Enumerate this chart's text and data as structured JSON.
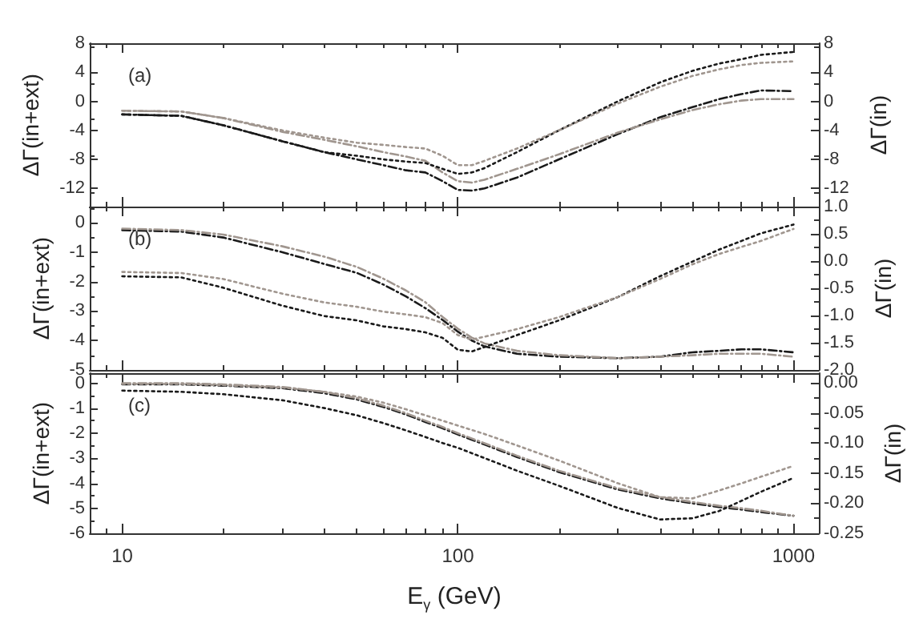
{
  "chart_data": [
    {
      "type": "line",
      "ylabel": "ΔΓ(in+ext)",
      "y2label": "ΔΓ(in)",
      "annotations": [
        "(a)"
      ],
      "log": "x",
      "xlim": [
        8,
        1190
      ],
      "xticks": [
        10,
        100,
        1000
      ],
      "tick_labels": "y",
      "ylim": [
        -14.5,
        8
      ],
      "yticks": [
        -12,
        -8,
        -4,
        0,
        4,
        8
      ],
      "y2lim": [
        -14.5,
        8
      ],
      "y2ticks": [
        -12,
        -8,
        -4,
        0,
        4,
        8
      ],
      "marker": "none",
      "x": [
        10,
        15,
        20,
        30,
        40,
        50,
        60,
        70,
        80,
        90,
        100,
        110,
        120,
        150,
        200,
        300,
        400,
        500,
        600,
        700,
        800,
        1000
      ],
      "series": [
        {
          "color": "#1a1a1a",
          "line_style": "dashed",
          "values": [
            -1.8,
            -2.0,
            -3.3,
            -5.5,
            -7,
            -8,
            -8.8,
            -9.5,
            -9.8,
            -11,
            -12.2,
            -12.3,
            -12,
            -10.5,
            -8,
            -4.5,
            -2.2,
            -0.8,
            0.3,
            1,
            1.5,
            1.4
          ]
        },
        {
          "color": "#a0968f",
          "line_style": "dashed",
          "values": [
            -1.3,
            -1.4,
            -2.3,
            -4.2,
            -5.3,
            -6.2,
            -7,
            -7.6,
            -8.2,
            -9.8,
            -11,
            -11.2,
            -10.8,
            -9.3,
            -7.3,
            -4.3,
            -2.5,
            -1.2,
            -0.4,
            0.1,
            0.3,
            0.3
          ]
        },
        {
          "color": "#1a1a1a",
          "line_style": "dotted",
          "axis": "y2",
          "values": [
            -1.8,
            -2.0,
            -3.3,
            -5.5,
            -7,
            -7.5,
            -8,
            -8.3,
            -8.5,
            -9.3,
            -10,
            -9.8,
            -9.2,
            -7,
            -4,
            0,
            2.6,
            4.2,
            5.2,
            5.8,
            6.4,
            6.8
          ]
        },
        {
          "color": "#a0968f",
          "line_style": "dotted",
          "axis": "y2",
          "values": [
            -1.3,
            -1.4,
            -2.3,
            -4,
            -5,
            -5.7,
            -6,
            -6.3,
            -6.5,
            -7.5,
            -8.8,
            -8.8,
            -8.2,
            -6.5,
            -4,
            -0.3,
            2,
            3.5,
            4.4,
            5,
            5.3,
            5.5
          ]
        }
      ]
    },
    {
      "type": "line",
      "ylabel": "ΔΓ(in+ext)",
      "y2label": "ΔΓ(in)",
      "annotations": [
        "(b)"
      ],
      "log": "x",
      "xlim": [
        8,
        1190
      ],
      "xticks": [
        10,
        100,
        1000
      ],
      "tick_labels": "y",
      "ylim": [
        -5,
        0.55
      ],
      "yticks": [
        -5,
        -4,
        -3,
        -2,
        -1,
        0
      ],
      "y2lim": [
        -2,
        1
      ],
      "y2ticks": [
        {
          "value": -2,
          "label": "-2.0"
        },
        {
          "value": -1.5,
          "label": "-1.5"
        },
        {
          "value": -1,
          "label": "-1.0"
        },
        {
          "value": -0.5,
          "label": "-0.5"
        },
        {
          "value": 0,
          "label": "0.0"
        },
        {
          "value": 0.5,
          "label": "0.5"
        },
        {
          "value": 1,
          "label": "1.0"
        }
      ],
      "marker": "none",
      "x": [
        10,
        15,
        20,
        30,
        40,
        50,
        60,
        70,
        80,
        90,
        100,
        110,
        120,
        150,
        200,
        300,
        400,
        500,
        600,
        700,
        800,
        1000
      ],
      "series": [
        {
          "color": "#1a1a1a",
          "line_style": "dashed",
          "values": [
            -0.25,
            -0.3,
            -0.5,
            -1.0,
            -1.4,
            -1.7,
            -2.1,
            -2.5,
            -2.9,
            -3.3,
            -3.7,
            -4.0,
            -4.2,
            -4.45,
            -4.55,
            -4.6,
            -4.55,
            -4.4,
            -4.35,
            -4.3,
            -4.3,
            -4.4
          ]
        },
        {
          "color": "#a0968f",
          "line_style": "dashed",
          "values": [
            -0.2,
            -0.25,
            -0.4,
            -0.8,
            -1.15,
            -1.5,
            -1.9,
            -2.3,
            -2.7,
            -3.2,
            -3.6,
            -3.9,
            -4.1,
            -4.35,
            -4.5,
            -4.6,
            -4.55,
            -4.5,
            -4.45,
            -4.45,
            -4.45,
            -4.55
          ]
        },
        {
          "color": "#1a1a1a",
          "line_style": "dotted",
          "axis": "y2",
          "values": [
            -0.28,
            -0.3,
            -0.49,
            -0.82,
            -1.01,
            -1.09,
            -1.2,
            -1.25,
            -1.31,
            -1.41,
            -1.63,
            -1.66,
            -1.58,
            -1.36,
            -1.09,
            -0.66,
            -0.28,
            -0.01,
            0.21,
            0.37,
            0.51,
            0.67
          ]
        },
        {
          "color": "#a0968f",
          "line_style": "dotted",
          "axis": "y2",
          "values": [
            -0.2,
            -0.22,
            -0.33,
            -0.6,
            -0.76,
            -0.84,
            -0.93,
            -0.98,
            -1.03,
            -1.14,
            -1.36,
            -1.44,
            -1.39,
            -1.25,
            -1.03,
            -0.66,
            -0.33,
            -0.06,
            0.13,
            0.26,
            0.37,
            0.59
          ]
        }
      ]
    },
    {
      "type": "line",
      "xlabel": "E$_{γ}$ (GeV)",
      "ylabel": "ΔΓ(in+ext)",
      "y2label": "ΔΓ(in)",
      "annotations": [
        "(c)"
      ],
      "log": "x",
      "xlim": [
        8,
        1190
      ],
      "xticks": [
        10,
        100,
        1000
      ],
      "ylim": [
        -6,
        0.4
      ],
      "yticks": [
        -6,
        -5,
        -4,
        -3,
        -2,
        -1,
        0
      ],
      "y2lim": [
        -0.25,
        0.016
      ],
      "y2ticks": [
        {
          "value": -0.25,
          "label": "-0.25"
        },
        {
          "value": -0.2,
          "label": "-0.20"
        },
        {
          "value": -0.15,
          "label": "-0.15"
        },
        {
          "value": -0.1,
          "label": "-0.10"
        },
        {
          "value": -0.05,
          "label": "-0.05"
        },
        {
          "value": 0,
          "label": "0.00"
        }
      ],
      "marker": "none",
      "x": [
        10,
        15,
        20,
        30,
        40,
        50,
        60,
        70,
        80,
        90,
        100,
        120,
        150,
        200,
        300,
        400,
        500,
        600,
        700,
        800,
        1000
      ],
      "series": [
        {
          "color": "#1a1a1a",
          "line_style": "dashed",
          "values": [
            -0.05,
            -0.05,
            -0.1,
            -0.2,
            -0.4,
            -0.65,
            -0.95,
            -1.25,
            -1.55,
            -1.8,
            -2.05,
            -2.45,
            -2.95,
            -3.55,
            -4.25,
            -4.6,
            -4.8,
            -4.95,
            -5.05,
            -5.15,
            -5.3
          ]
        },
        {
          "color": "#a0968f",
          "line_style": "dashed",
          "values": [
            0,
            0,
            -0.05,
            -0.15,
            -0.35,
            -0.6,
            -0.9,
            -1.2,
            -1.5,
            -1.75,
            -2.0,
            -2.4,
            -2.9,
            -3.5,
            -4.2,
            -4.55,
            -4.75,
            -4.9,
            -5.0,
            -5.1,
            -5.3
          ]
        },
        {
          "color": "#1a1a1a",
          "line_style": "dotted",
          "axis": "y2",
          "values": [
            -0.013,
            -0.015,
            -0.019,
            -0.029,
            -0.042,
            -0.054,
            -0.067,
            -0.079,
            -0.09,
            -0.1,
            -0.108,
            -0.125,
            -0.146,
            -0.171,
            -0.208,
            -0.227,
            -0.225,
            -0.213,
            -0.196,
            -0.181,
            -0.158
          ]
        },
        {
          "color": "#a0968f",
          "line_style": "dotted",
          "axis": "y2",
          "values": [
            -0.002,
            -0.002,
            -0.004,
            -0.008,
            -0.015,
            -0.023,
            -0.033,
            -0.044,
            -0.054,
            -0.063,
            -0.071,
            -0.085,
            -0.104,
            -0.129,
            -0.167,
            -0.19,
            -0.192,
            -0.179,
            -0.167,
            -0.156,
            -0.138
          ]
        }
      ]
    }
  ]
}
